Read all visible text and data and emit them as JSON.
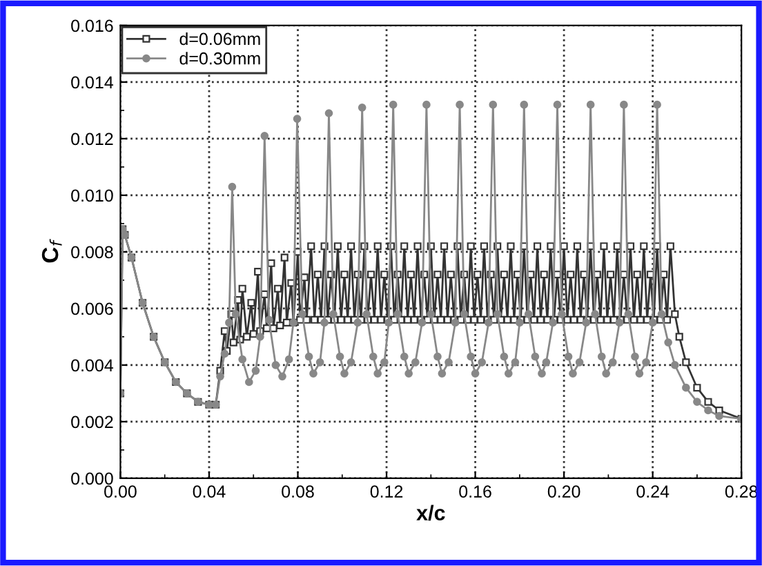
{
  "chart_data": {
    "type": "line",
    "xlabel": "x/c",
    "ylabel": "C$_{f}$",
    "xlim": [
      0.0,
      0.28
    ],
    "xticks": [
      {
        "value": 0.0,
        "label": "0.00"
      },
      {
        "value": 0.04,
        "label": "0.04"
      },
      {
        "value": 0.08,
        "label": "0.08"
      },
      {
        "value": 0.12,
        "label": "0.12"
      },
      {
        "value": 0.16,
        "label": "0.16"
      },
      {
        "value": 0.2,
        "label": "0.20"
      },
      {
        "value": 0.24,
        "label": "0.24"
      },
      {
        "value": 0.28,
        "label": "0.28"
      }
    ],
    "ylim": [
      0.0,
      0.016
    ],
    "yticks": [
      {
        "value": 0.0,
        "label": "0.000"
      },
      {
        "value": 0.002,
        "label": "0.002"
      },
      {
        "value": 0.004,
        "label": "0.004"
      },
      {
        "value": 0.006,
        "label": "0.006"
      },
      {
        "value": 0.008,
        "label": "0.008"
      },
      {
        "value": 0.01,
        "label": "0.010"
      },
      {
        "value": 0.012,
        "label": "0.012"
      },
      {
        "value": 0.014,
        "label": "0.014"
      },
      {
        "value": 0.016,
        "label": "0.016"
      }
    ],
    "grid": true,
    "legend": "top left",
    "series": [
      {
        "name": "d=0.06mm",
        "color": "#333333",
        "marker": "square",
        "x": [
          0,
          0.001,
          0.002,
          0.005,
          0.01,
          0.015,
          0.02,
          0.025,
          0.03,
          0.035,
          0.04,
          0.043,
          0.045,
          0.047,
          0.048,
          0.05,
          0.051,
          0.053,
          0.054,
          0.055,
          0.057,
          0.059,
          0.06,
          0.062,
          0.063,
          0.065,
          0.066,
          0.068,
          0.069,
          0.071,
          0.072,
          0.074,
          0.075,
          0.077,
          0.078,
          0.08,
          0.081,
          0.083,
          0.084,
          0.086,
          0.0875,
          0.089,
          0.0905,
          0.092,
          0.0935,
          0.095,
          0.0965,
          0.098,
          0.0995,
          0.101,
          0.1025,
          0.104,
          0.1055,
          0.107,
          0.1085,
          0.11,
          0.1115,
          0.113,
          0.1145,
          0.116,
          0.1175,
          0.119,
          0.1205,
          0.122,
          0.1235,
          0.125,
          0.1265,
          0.128,
          0.1295,
          0.131,
          0.1325,
          0.134,
          0.1355,
          0.137,
          0.1385,
          0.14,
          0.1415,
          0.143,
          0.1445,
          0.146,
          0.1475,
          0.149,
          0.1505,
          0.152,
          0.1535,
          0.155,
          0.1565,
          0.158,
          0.1595,
          0.161,
          0.1625,
          0.164,
          0.1655,
          0.167,
          0.1685,
          0.17,
          0.1715,
          0.173,
          0.1745,
          0.176,
          0.1775,
          0.179,
          0.1805,
          0.182,
          0.1835,
          0.185,
          0.1865,
          0.188,
          0.1895,
          0.191,
          0.1925,
          0.194,
          0.1955,
          0.197,
          0.1985,
          0.2,
          0.2015,
          0.203,
          0.2045,
          0.206,
          0.2075,
          0.209,
          0.2105,
          0.212,
          0.2135,
          0.215,
          0.2165,
          0.218,
          0.2195,
          0.221,
          0.2225,
          0.224,
          0.2255,
          0.227,
          0.2285,
          0.23,
          0.2315,
          0.233,
          0.2345,
          0.236,
          0.2375,
          0.239,
          0.2405,
          0.242,
          0.2435,
          0.245,
          0.2465,
          0.248,
          0.25,
          0.252,
          0.255,
          0.26,
          0.265,
          0.27,
          0.28
        ],
        "values": [
          0.003,
          0.0088,
          0.0086,
          0.0078,
          0.0062,
          0.005,
          0.0041,
          0.0034,
          0.003,
          0.0027,
          0.0026,
          0.0026,
          0.0038,
          0.0052,
          0.0045,
          0.0058,
          0.0048,
          0.0063,
          0.0049,
          0.0067,
          0.005,
          0.0062,
          0.0051,
          0.0073,
          0.0052,
          0.0065,
          0.0053,
          0.0076,
          0.0053,
          0.0067,
          0.0054,
          0.0078,
          0.0055,
          0.0069,
          0.0055,
          0.008,
          0.0056,
          0.0071,
          0.0056,
          0.0082,
          0.0056,
          0.0072,
          0.0056,
          0.0082,
          0.0056,
          0.0072,
          0.0056,
          0.0082,
          0.0056,
          0.0072,
          0.0056,
          0.0082,
          0.0056,
          0.0072,
          0.0056,
          0.0082,
          0.0056,
          0.0072,
          0.0056,
          0.0082,
          0.0056,
          0.0072,
          0.0056,
          0.0082,
          0.0056,
          0.0072,
          0.0056,
          0.0082,
          0.0056,
          0.0072,
          0.0056,
          0.0082,
          0.0056,
          0.0072,
          0.0056,
          0.0082,
          0.0056,
          0.0072,
          0.0056,
          0.0082,
          0.0056,
          0.0072,
          0.0056,
          0.0082,
          0.0056,
          0.0072,
          0.0056,
          0.0082,
          0.0056,
          0.0072,
          0.0056,
          0.0082,
          0.0056,
          0.0072,
          0.0056,
          0.0082,
          0.0056,
          0.0072,
          0.0056,
          0.0082,
          0.0056,
          0.0072,
          0.0056,
          0.0082,
          0.0056,
          0.0072,
          0.0056,
          0.0082,
          0.0056,
          0.0072,
          0.0056,
          0.0082,
          0.0056,
          0.0072,
          0.0056,
          0.0082,
          0.0056,
          0.0072,
          0.0056,
          0.0082,
          0.0056,
          0.0072,
          0.0056,
          0.0082,
          0.0056,
          0.0072,
          0.0056,
          0.0082,
          0.0056,
          0.0072,
          0.0056,
          0.0082,
          0.0056,
          0.0072,
          0.0056,
          0.0082,
          0.0056,
          0.0072,
          0.0056,
          0.0082,
          0.0056,
          0.0072,
          0.0056,
          0.0082,
          0.0056,
          0.0072,
          0.0056,
          0.0082,
          0.0058,
          0.005,
          0.0041,
          0.0032,
          0.0027,
          0.0024,
          0.0021
        ]
      },
      {
        "name": "d=0.30mm",
        "color": "#888888",
        "marker": "circle",
        "x": [
          0,
          0.001,
          0.002,
          0.005,
          0.01,
          0.015,
          0.02,
          0.025,
          0.03,
          0.035,
          0.04,
          0.043,
          0.045,
          0.047,
          0.049,
          0.0504,
          0.052,
          0.055,
          0.058,
          0.061,
          0.063,
          0.065,
          0.067,
          0.07,
          0.073,
          0.076,
          0.078,
          0.0797,
          0.082,
          0.085,
          0.087,
          0.09,
          0.092,
          0.094,
          0.096,
          0.099,
          0.101,
          0.104,
          0.107,
          0.109,
          0.111,
          0.114,
          0.116,
          0.119,
          0.121,
          0.123,
          0.125,
          0.128,
          0.13,
          0.133,
          0.136,
          0.138,
          0.14,
          0.143,
          0.145,
          0.148,
          0.151,
          0.153,
          0.155,
          0.158,
          0.16,
          0.163,
          0.166,
          0.168,
          0.17,
          0.173,
          0.175,
          0.178,
          0.18,
          0.182,
          0.184,
          0.187,
          0.19,
          0.192,
          0.195,
          0.197,
          0.199,
          0.202,
          0.204,
          0.207,
          0.21,
          0.212,
          0.214,
          0.217,
          0.219,
          0.222,
          0.225,
          0.227,
          0.229,
          0.232,
          0.234,
          0.237,
          0.24,
          0.242,
          0.244,
          0.247,
          0.25,
          0.255,
          0.26,
          0.265,
          0.27,
          0.28
        ],
        "values": [
          0.003,
          0.0088,
          0.0086,
          0.0078,
          0.0062,
          0.005,
          0.0041,
          0.0034,
          0.003,
          0.0027,
          0.0026,
          0.0026,
          0.0036,
          0.0044,
          0.0055,
          0.0103,
          0.0058,
          0.0042,
          0.0034,
          0.0038,
          0.005,
          0.0121,
          0.0056,
          0.004,
          0.0036,
          0.0042,
          0.0055,
          0.0127,
          0.0058,
          0.0043,
          0.0037,
          0.0041,
          0.0055,
          0.0129,
          0.0058,
          0.0043,
          0.0037,
          0.0041,
          0.0055,
          0.0131,
          0.0058,
          0.0043,
          0.0037,
          0.0041,
          0.0055,
          0.0132,
          0.0058,
          0.0043,
          0.0037,
          0.0041,
          0.0055,
          0.0132,
          0.0058,
          0.0043,
          0.0037,
          0.0041,
          0.0055,
          0.0132,
          0.0058,
          0.0043,
          0.0037,
          0.0041,
          0.0055,
          0.0132,
          0.0058,
          0.0043,
          0.0037,
          0.0041,
          0.0055,
          0.0132,
          0.0058,
          0.0043,
          0.0037,
          0.0041,
          0.0055,
          0.0132,
          0.0058,
          0.0043,
          0.0037,
          0.0041,
          0.0055,
          0.0132,
          0.0058,
          0.0043,
          0.0037,
          0.0041,
          0.0055,
          0.0132,
          0.0058,
          0.0043,
          0.0037,
          0.0041,
          0.0055,
          0.0132,
          0.0058,
          0.0048,
          0.004,
          0.0032,
          0.0027,
          0.0024,
          0.0022,
          0.0021
        ]
      }
    ]
  }
}
